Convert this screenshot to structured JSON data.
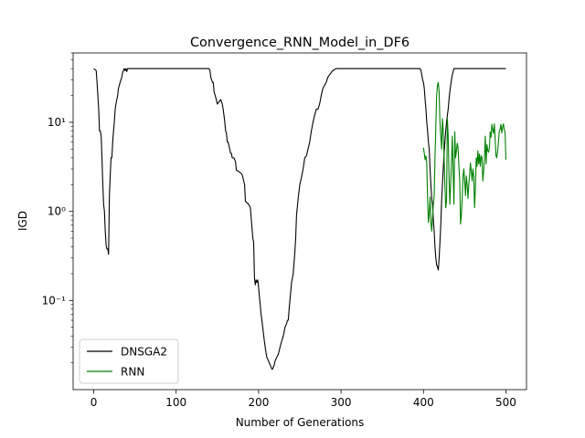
{
  "chart_data": {
    "type": "line",
    "title": "Convergence_RNN_Model_in_DF6",
    "xlabel": "Number of Generations",
    "ylabel": "IGD",
    "xlim": [
      -25,
      525
    ],
    "ylim": [
      0.01,
      60
    ],
    "yscale": "log",
    "x_ticks": [
      0,
      100,
      200,
      300,
      400,
      500
    ],
    "x_tick_labels": [
      "0",
      "100",
      "200",
      "300",
      "400",
      "500"
    ],
    "y_ticks": [
      0.1,
      1,
      10
    ],
    "y_tick_labels": [
      "10⁻¹",
      "10⁰",
      "10¹"
    ],
    "grid": false,
    "legend_position": "lower-left",
    "series": [
      {
        "name": "DNSGA2",
        "color": "#000000",
        "points": [
          [
            0,
            40
          ],
          [
            3,
            38
          ],
          [
            4,
            28
          ],
          [
            5,
            20
          ],
          [
            6,
            14
          ],
          [
            7,
            8
          ],
          [
            8,
            8
          ],
          [
            9,
            7
          ],
          [
            10,
            4
          ],
          [
            11,
            2
          ],
          [
            12,
            1.2
          ],
          [
            13,
            1.0
          ],
          [
            14,
            0.6
          ],
          [
            15,
            0.42
          ],
          [
            16,
            0.38
          ],
          [
            17,
            0.38
          ],
          [
            18,
            0.33
          ],
          [
            19,
            1.5
          ],
          [
            20,
            2.5
          ],
          [
            21,
            4
          ],
          [
            22,
            4
          ],
          [
            23,
            6
          ],
          [
            24,
            8
          ],
          [
            25,
            10
          ],
          [
            26,
            14
          ],
          [
            27,
            16
          ],
          [
            28,
            18
          ],
          [
            29,
            20
          ],
          [
            30,
            24
          ],
          [
            31,
            26
          ],
          [
            32,
            28
          ],
          [
            33,
            30
          ],
          [
            34,
            32
          ],
          [
            35,
            36
          ],
          [
            36,
            38
          ],
          [
            37,
            40
          ],
          [
            38,
            38
          ],
          [
            39,
            40
          ],
          [
            40,
            37
          ],
          [
            41,
            40
          ],
          [
            43,
            40
          ],
          [
            140,
            40
          ],
          [
            141,
            38
          ],
          [
            142,
            32
          ],
          [
            143,
            30
          ],
          [
            144,
            28
          ],
          [
            145,
            28
          ],
          [
            146,
            22
          ],
          [
            148,
            19
          ],
          [
            150,
            16
          ],
          [
            152,
            17
          ],
          [
            154,
            18
          ],
          [
            155,
            17
          ],
          [
            156,
            16
          ],
          [
            157,
            14
          ],
          [
            158,
            12
          ],
          [
            159,
            10
          ],
          [
            160,
            8
          ],
          [
            161,
            7.5
          ],
          [
            162,
            6
          ],
          [
            163,
            6
          ],
          [
            165,
            5
          ],
          [
            166,
            4.5
          ],
          [
            167,
            4.5
          ],
          [
            168,
            4
          ],
          [
            170,
            4
          ],
          [
            172,
            3.6
          ],
          [
            173,
            2.9
          ],
          [
            176,
            2.8
          ],
          [
            180,
            2.6
          ],
          [
            183,
            2
          ],
          [
            184,
            1.3
          ],
          [
            188,
            1.2
          ],
          [
            190,
            1.1
          ],
          [
            193,
            0.5
          ],
          [
            194,
            0.45
          ],
          [
            195,
            0.18
          ],
          [
            196,
            0.15
          ],
          [
            197,
            0.17
          ],
          [
            198,
            0.16
          ],
          [
            199,
            0.17
          ],
          [
            200,
            0.14
          ],
          [
            201,
            0.11
          ],
          [
            202,
            0.09
          ],
          [
            203,
            0.07
          ],
          [
            204,
            0.06
          ],
          [
            205,
            0.05
          ],
          [
            206,
            0.042
          ],
          [
            207,
            0.035
          ],
          [
            208,
            0.03
          ],
          [
            209,
            0.026
          ],
          [
            210,
            0.023
          ],
          [
            211,
            0.022
          ],
          [
            212,
            0.021
          ],
          [
            213,
            0.02
          ],
          [
            214,
            0.019
          ],
          [
            215,
            0.018
          ],
          [
            216,
            0.017
          ],
          [
            217,
            0.017
          ],
          [
            218,
            0.018
          ],
          [
            219,
            0.019
          ],
          [
            220,
            0.021
          ],
          [
            222,
            0.023
          ],
          [
            224,
            0.025
          ],
          [
            226,
            0.03
          ],
          [
            228,
            0.035
          ],
          [
            230,
            0.04
          ],
          [
            232,
            0.05
          ],
          [
            234,
            0.055
          ],
          [
            235,
            0.06
          ],
          [
            236,
            0.06
          ],
          [
            237,
            0.08
          ],
          [
            238,
            0.1
          ],
          [
            240,
            0.16
          ],
          [
            242,
            0.2
          ],
          [
            244,
            0.35
          ],
          [
            245,
            0.5
          ],
          [
            246,
            0.9
          ],
          [
            248,
            1.4
          ],
          [
            250,
            2
          ],
          [
            252,
            2.4
          ],
          [
            254,
            3
          ],
          [
            256,
            4
          ],
          [
            258,
            4.2
          ],
          [
            260,
            5
          ],
          [
            262,
            6
          ],
          [
            264,
            8
          ],
          [
            266,
            10
          ],
          [
            268,
            12
          ],
          [
            270,
            14
          ],
          [
            272,
            14
          ],
          [
            274,
            16
          ],
          [
            276,
            20
          ],
          [
            278,
            24
          ],
          [
            280,
            26
          ],
          [
            282,
            28
          ],
          [
            284,
            32
          ],
          [
            286,
            34
          ],
          [
            288,
            36
          ],
          [
            290,
            38
          ],
          [
            292,
            39
          ],
          [
            294,
            40
          ],
          [
            396,
            40
          ],
          [
            397,
            38
          ],
          [
            398,
            34
          ],
          [
            399,
            30
          ],
          [
            400,
            28
          ],
          [
            401,
            24
          ],
          [
            402,
            18
          ],
          [
            403,
            14
          ],
          [
            404,
            10
          ],
          [
            405,
            8
          ],
          [
            406,
            6
          ],
          [
            407,
            5
          ],
          [
            408,
            3
          ],
          [
            409,
            2
          ],
          [
            410,
            1.4
          ],
          [
            411,
            1.2
          ],
          [
            412,
            0.8
          ],
          [
            413,
            0.6
          ],
          [
            414,
            0.4
          ],
          [
            415,
            0.3
          ],
          [
            416,
            0.25
          ],
          [
            417,
            0.24
          ],
          [
            418,
            0.22
          ],
          [
            419,
            0.3
          ],
          [
            420,
            0.45
          ],
          [
            421,
            0.7
          ],
          [
            422,
            1.3
          ],
          [
            423,
            2
          ],
          [
            424,
            3
          ],
          [
            425,
            4.5
          ],
          [
            426,
            6
          ],
          [
            427,
            8
          ],
          [
            428,
            10
          ],
          [
            429,
            12
          ],
          [
            430,
            14
          ],
          [
            431,
            18
          ],
          [
            432,
            22
          ],
          [
            433,
            26
          ],
          [
            434,
            30
          ],
          [
            435,
            34
          ],
          [
            436,
            37
          ],
          [
            437,
            40
          ],
          [
            500,
            40
          ]
        ]
      },
      {
        "name": "RNN",
        "color": "#008000",
        "points": [
          [
            400,
            5.2
          ],
          [
            401,
            4.5
          ],
          [
            402,
            3.8
          ],
          [
            403,
            4.2
          ],
          [
            404,
            3.5
          ],
          [
            405,
            1.4
          ],
          [
            406,
            0.75
          ],
          [
            407,
            0.95
          ],
          [
            408,
            1.45
          ],
          [
            409,
            0.75
          ],
          [
            410,
            0.6
          ],
          [
            411,
            0.85
          ],
          [
            412,
            1.2
          ],
          [
            413,
            1.5
          ],
          [
            414,
            4
          ],
          [
            415,
            9
          ],
          [
            416,
            20
          ],
          [
            417,
            26
          ],
          [
            418,
            28
          ],
          [
            419,
            22
          ],
          [
            420,
            10
          ],
          [
            421,
            7
          ],
          [
            422,
            5
          ],
          [
            423,
            11
          ],
          [
            424,
            8
          ],
          [
            425,
            4
          ],
          [
            426,
            2
          ],
          [
            427,
            1.1
          ],
          [
            428,
            1.3
          ],
          [
            429,
            11
          ],
          [
            430,
            7
          ],
          [
            431,
            2.5
          ],
          [
            432,
            1.2
          ],
          [
            433,
            2
          ],
          [
            434,
            3.5
          ],
          [
            435,
            7
          ],
          [
            436,
            2.8
          ],
          [
            437,
            1.2
          ],
          [
            438,
            7.8
          ],
          [
            439,
            4
          ],
          [
            440,
            4.8
          ],
          [
            441,
            5.8
          ],
          [
            442,
            5.2
          ],
          [
            443,
            3.2
          ],
          [
            444,
            2.2
          ],
          [
            445,
            0.72
          ],
          [
            446,
            0.9
          ],
          [
            447,
            1.4
          ],
          [
            448,
            2.5
          ],
          [
            449,
            3
          ],
          [
            450,
            2.2
          ],
          [
            451,
            1.5
          ],
          [
            452,
            2.5
          ],
          [
            453,
            2
          ],
          [
            454,
            1.4
          ],
          [
            455,
            2
          ],
          [
            456,
            2.6
          ],
          [
            457,
            3.5
          ],
          [
            458,
            2.8
          ],
          [
            459,
            2.2
          ],
          [
            460,
            3
          ],
          [
            461,
            2.5
          ],
          [
            462,
            1.1
          ],
          [
            463,
            1.8
          ],
          [
            464,
            4
          ],
          [
            465,
            3.2
          ],
          [
            466,
            4.8
          ],
          [
            467,
            3.4
          ],
          [
            468,
            4.4
          ],
          [
            469,
            3.2
          ],
          [
            470,
            4.2
          ],
          [
            471,
            4
          ],
          [
            472,
            2.2
          ],
          [
            473,
            2.8
          ],
          [
            474,
            4
          ],
          [
            475,
            7
          ],
          [
            476,
            3.4
          ],
          [
            477,
            5.6
          ],
          [
            478,
            4.8
          ],
          [
            479,
            4.6
          ],
          [
            480,
            5.2
          ],
          [
            481,
            7.8
          ],
          [
            482,
            6.8
          ],
          [
            483,
            9.5
          ],
          [
            484,
            8.2
          ],
          [
            485,
            7.5
          ],
          [
            486,
            9.6
          ],
          [
            487,
            6.5
          ],
          [
            488,
            4.2
          ],
          [
            489,
            4
          ],
          [
            490,
            4.8
          ],
          [
            491,
            6
          ],
          [
            492,
            8
          ],
          [
            493,
            8.4
          ],
          [
            494,
            9.5
          ],
          [
            495,
            7.6
          ],
          [
            496,
            8.8
          ],
          [
            497,
            9.6
          ],
          [
            498,
            8.2
          ],
          [
            499,
            7.8
          ],
          [
            500,
            3.8
          ]
        ]
      }
    ]
  }
}
